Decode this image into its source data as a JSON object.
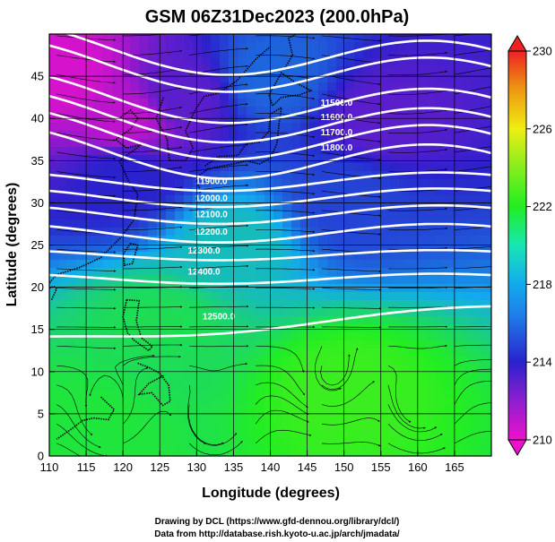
{
  "header": {
    "title": "GSM 06Z31Dec2023 (200.0hPa)"
  },
  "footer": {
    "credit_line1": "Drawing by DCL (https://www.gfd-dennou.org/library/dcl/)",
    "credit_line2": "Data from http://database.rish.kyoto-u.ac.jp/arch/jmadata/"
  },
  "chart_data": {
    "type": "heatmap",
    "title": "GSM 06Z31Dec2023 (200.0hPa)",
    "xlabel": "Longitude (degrees)",
    "ylabel": "Latitude  (degrees)",
    "xlim": [
      110,
      170
    ],
    "ylim": [
      0,
      50
    ],
    "x_ticks": [
      110,
      115,
      120,
      125,
      130,
      135,
      140,
      145,
      150,
      155,
      160,
      165
    ],
    "y_ticks": [
      0,
      5,
      10,
      15,
      20,
      25,
      30,
      35,
      40,
      45
    ],
    "grid": true,
    "colorbar": {
      "min": 210,
      "max": 230,
      "ticks": [
        210,
        214,
        218,
        222,
        226,
        230
      ],
      "colors": [
        "#ee11cc",
        "#2a22cc",
        "#12aaee",
        "#22ee22",
        "#eeee11",
        "#ee2222"
      ]
    },
    "field_samples": [
      {
        "lon": 112,
        "lat": 45,
        "value": 210.5
      },
      {
        "lon": 120,
        "lat": 40,
        "value": 211
      },
      {
        "lon": 128,
        "lat": 43,
        "value": 213
      },
      {
        "lon": 140,
        "lat": 45,
        "value": 216
      },
      {
        "lon": 155,
        "lat": 40,
        "value": 213
      },
      {
        "lon": 120,
        "lat": 33,
        "value": 214
      },
      {
        "lon": 150,
        "lat": 30,
        "value": 215
      },
      {
        "lon": 135,
        "lat": 25,
        "value": 219
      },
      {
        "lon": 125,
        "lat": 15,
        "value": 221
      },
      {
        "lon": 150,
        "lat": 8,
        "value": 222.5
      },
      {
        "lon": 115,
        "lat": 3,
        "value": 221.5
      }
    ],
    "contours": [
      {
        "label": "11500.0",
        "label_lon": 149,
        "label_lat": 41.5
      },
      {
        "label": "11600.0",
        "label_lon": 149,
        "label_lat": 39.8
      },
      {
        "label": "11700.0",
        "label_lon": 149,
        "label_lat": 38
      },
      {
        "label": "11800.0",
        "label_lon": 149,
        "label_lat": 36.2
      },
      {
        "label": "11900.0",
        "label_lon": 132,
        "label_lat": 32.2
      },
      {
        "label": "12000.0",
        "label_lon": 132,
        "label_lat": 30.2
      },
      {
        "label": "12100.0",
        "label_lon": 132,
        "label_lat": 28.3
      },
      {
        "label": "12200.0",
        "label_lon": 132,
        "label_lat": 26.2
      },
      {
        "label": "12300.0",
        "label_lon": 131,
        "label_lat": 24
      },
      {
        "label": "12400.0",
        "label_lon": 131,
        "label_lat": 21.5
      },
      {
        "label": "12500.0",
        "label_lon": 133,
        "label_lat": 16.2
      }
    ]
  }
}
